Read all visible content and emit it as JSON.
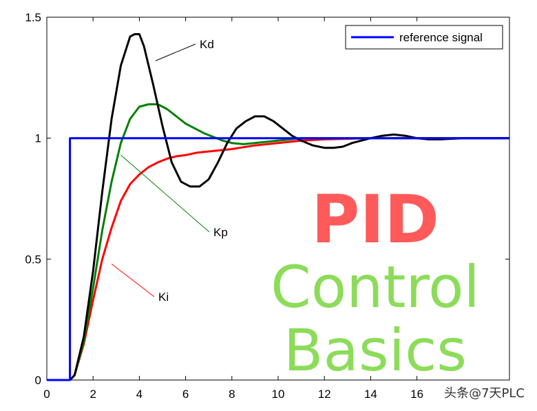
{
  "chart_data": {
    "type": "line",
    "title": "",
    "xlabel": "",
    "ylabel": "",
    "xlim": [
      0,
      20
    ],
    "ylim": [
      0,
      1.5
    ],
    "xticks": [
      "0",
      "2",
      "4",
      "6",
      "8",
      "10",
      "12",
      "14",
      "16"
    ],
    "xtick_values": [
      0,
      2,
      4,
      6,
      8,
      10,
      12,
      14,
      16
    ],
    "yticks": [
      "0",
      "0.5",
      "1",
      "1.5"
    ],
    "ytick_values": [
      0,
      0.5,
      1,
      1.5
    ],
    "grid": false,
    "legend": {
      "position": "top-right",
      "entries": [
        "reference signal"
      ]
    },
    "series": [
      {
        "name": "reference signal",
        "color": "#0000ff",
        "x": [
          0,
          1,
          1,
          20
        ],
        "y": [
          0,
          0,
          1,
          1
        ]
      },
      {
        "name": "Kd",
        "color": "#000000",
        "x": [
          0,
          1,
          1.2,
          1.6,
          2.0,
          2.4,
          2.8,
          3.2,
          3.6,
          3.8,
          4.0,
          4.2,
          4.6,
          5.0,
          5.4,
          5.8,
          6.2,
          6.6,
          7.0,
          7.4,
          7.8,
          8.2,
          8.6,
          9.0,
          9.4,
          9.8,
          10.2,
          10.6,
          11.0,
          11.5,
          12.0,
          12.4,
          12.8,
          13.2,
          13.6,
          14.0,
          14.5,
          15.0,
          15.5,
          16.0,
          16.5,
          17.0,
          18.0,
          20.0
        ],
        "y": [
          0,
          0,
          0.02,
          0.18,
          0.45,
          0.78,
          1.08,
          1.3,
          1.42,
          1.43,
          1.43,
          1.38,
          1.22,
          1.05,
          0.9,
          0.82,
          0.8,
          0.8,
          0.83,
          0.9,
          0.98,
          1.04,
          1.07,
          1.09,
          1.09,
          1.07,
          1.04,
          1.01,
          0.99,
          0.97,
          0.96,
          0.96,
          0.965,
          0.98,
          0.99,
          1.0,
          1.01,
          1.015,
          1.01,
          1.0,
          0.995,
          0.995,
          1.0,
          1.0
        ]
      },
      {
        "name": "Kp",
        "color": "#008000",
        "x": [
          0,
          1,
          1.2,
          1.6,
          2.0,
          2.4,
          2.8,
          3.2,
          3.6,
          4.0,
          4.4,
          4.8,
          5.2,
          5.6,
          6.0,
          6.4,
          6.8,
          7.2,
          7.6,
          8.0,
          8.5,
          9.0,
          10.0,
          11.0,
          12.0,
          14.0,
          20.0
        ],
        "y": [
          0,
          0,
          0.02,
          0.16,
          0.38,
          0.62,
          0.82,
          0.98,
          1.08,
          1.13,
          1.14,
          1.14,
          1.12,
          1.09,
          1.06,
          1.04,
          1.02,
          1.005,
          0.99,
          0.98,
          0.975,
          0.98,
          0.99,
          1.0,
          1.0,
          1.0,
          1.0
        ]
      },
      {
        "name": "Ki",
        "color": "#ff0000",
        "x": [
          0,
          1,
          1.2,
          1.6,
          2.0,
          2.4,
          2.8,
          3.2,
          3.6,
          4.0,
          4.4,
          4.8,
          5.2,
          5.6,
          6.0,
          6.5,
          7.0,
          8.0,
          9.0,
          10.0,
          11.0,
          12.0,
          14.0,
          16.0,
          20.0
        ],
        "y": [
          0,
          0,
          0.02,
          0.15,
          0.33,
          0.5,
          0.63,
          0.74,
          0.81,
          0.85,
          0.88,
          0.9,
          0.915,
          0.925,
          0.93,
          0.94,
          0.945,
          0.955,
          0.97,
          0.98,
          0.99,
          0.995,
          1.0,
          1.0,
          1.0
        ]
      }
    ],
    "annotations": [
      {
        "text": "Kd",
        "series": "Kd",
        "at": [
          4.7,
          1.32
        ]
      },
      {
        "text": "Kp",
        "series": "Kp",
        "at": [
          3.2,
          0.93
        ]
      },
      {
        "text": "Ki",
        "series": "Ki",
        "at": [
          2.8,
          0.48
        ]
      }
    ]
  },
  "overlay": {
    "line1": "PID",
    "line2": "Control",
    "line3": "Basics",
    "line1_color": "#ff5a5a",
    "line2_color": "#8cdc5a"
  },
  "watermark": "头条@7天PLC"
}
